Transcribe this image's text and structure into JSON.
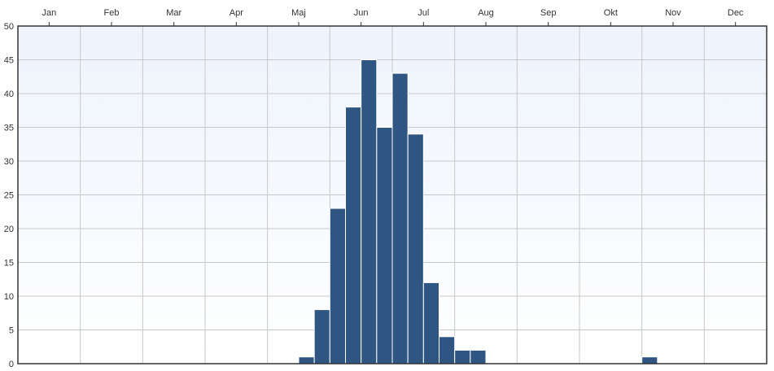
{
  "chart_data": {
    "type": "bar",
    "x_months": [
      "Jan",
      "Feb",
      "Mar",
      "Apr",
      "Maj",
      "Jun",
      "Jul",
      "Aug",
      "Sep",
      "Okt",
      "Nov",
      "Dec"
    ],
    "y_ticks": [
      0,
      5,
      10,
      15,
      20,
      25,
      30,
      35,
      40,
      45,
      50
    ],
    "ylim": [
      0,
      50
    ],
    "bins_per_month": 4,
    "bars": [
      {
        "bin": 18,
        "value": 1
      },
      {
        "bin": 19,
        "value": 8
      },
      {
        "bin": 20,
        "value": 23
      },
      {
        "bin": 21,
        "value": 38
      },
      {
        "bin": 22,
        "value": 45
      },
      {
        "bin": 23,
        "value": 35
      },
      {
        "bin": 24,
        "value": 43
      },
      {
        "bin": 25,
        "value": 34
      },
      {
        "bin": 26,
        "value": 12
      },
      {
        "bin": 27,
        "value": 4
      },
      {
        "bin": 28,
        "value": 2
      },
      {
        "bin": 29,
        "value": 2
      },
      {
        "bin": 40,
        "value": 1
      }
    ],
    "grid": true,
    "colors": {
      "bar": "#2f5682",
      "bar_stroke": "#ffffff",
      "grid": "#c8c8c8",
      "axis": "#333333",
      "plot_bg_top": "#eef3fc",
      "plot_bg_bottom": "#ffffff"
    }
  }
}
